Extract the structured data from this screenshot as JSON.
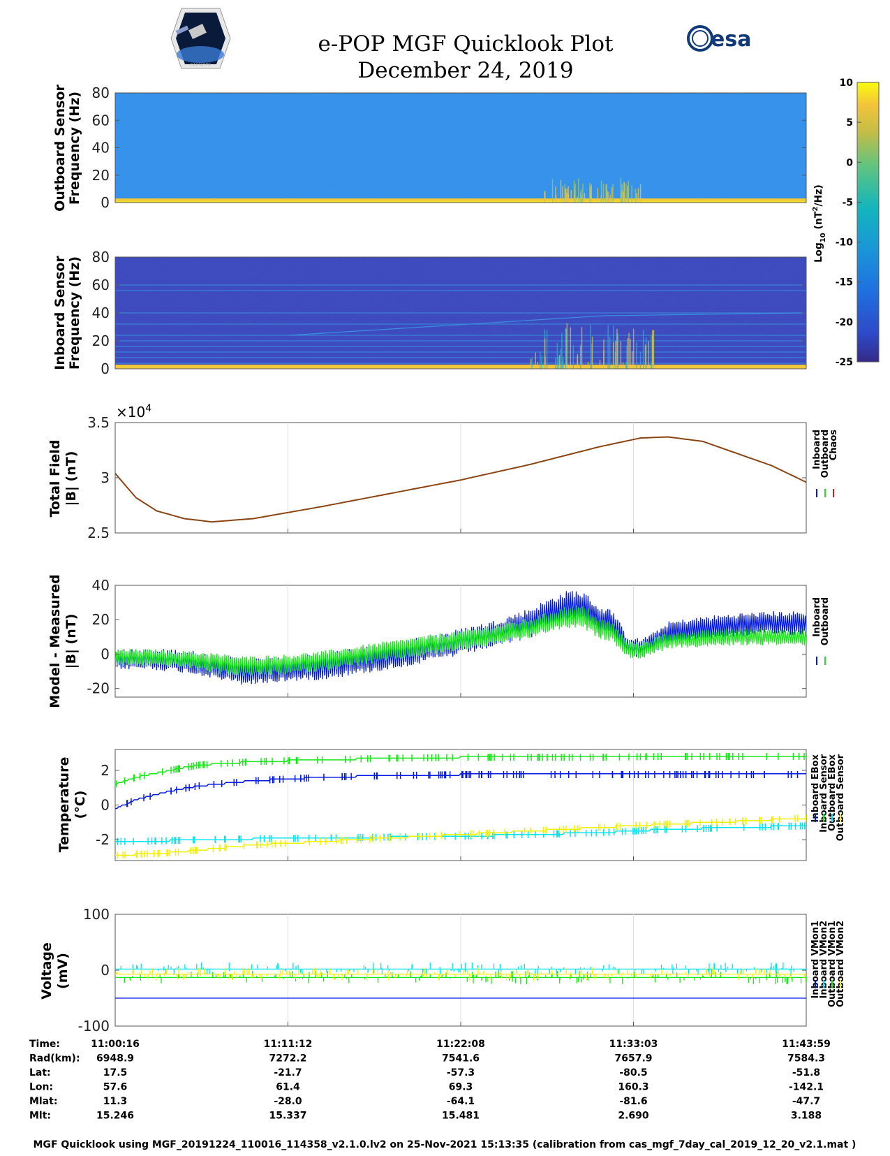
{
  "header": {
    "title": "e-POP MGF Quicklook Plot",
    "date": "December 24, 2019",
    "left_logo_label": "CASSIOPE",
    "right_logo_label": "esa"
  },
  "chart_data": [
    {
      "type": "heatmap",
      "id": "outboard-spectrogram",
      "ylabel": [
        "Outboard Sensor",
        "Frequency (Hz)"
      ],
      "ylim": [
        0,
        80
      ],
      "yticks": [
        0,
        20,
        40,
        60,
        80
      ],
      "description_values": {
        "background_log10": -13,
        "low_band_log10": -1,
        "burst_intervals_fraction": [
          0.62,
          0.76
        ]
      }
    },
    {
      "type": "heatmap",
      "id": "inboard-spectrogram",
      "ylabel": [
        "Inboard Sensor",
        "Frequency (Hz)"
      ],
      "ylim": [
        0,
        80
      ],
      "yticks": [
        0,
        20,
        40,
        60,
        80
      ],
      "description_values": {
        "background_log10": -22,
        "line_freqs_hz": [
          4,
          8,
          12,
          16,
          20,
          24,
          32,
          40,
          56,
          60
        ]
      }
    },
    {
      "type": "colorbar",
      "id": "spectrogram-colorbar",
      "label": "Log10 (nT²/Hz)",
      "label_main": "Log",
      "label_sub": "10",
      "label_rest": " (nT",
      "label_sup": "2",
      "label_end": "/Hz)",
      "range": [
        -25,
        10
      ],
      "ticks": [
        "10",
        "5",
        "0",
        "-5",
        "-10",
        "-15",
        "-20",
        "-25"
      ],
      "tick_values": [
        10,
        5,
        0,
        -5,
        -10,
        -15,
        -20,
        -25
      ]
    },
    {
      "type": "line",
      "id": "total-field",
      "ylabel": [
        "Total Field",
        "|B| (nT)"
      ],
      "yscale_label": "×10",
      "yscale_exp": "4",
      "ylim": [
        2.5,
        3.5
      ],
      "yticks": [
        "2.5",
        "3",
        "3.5"
      ],
      "ytick_values": [
        2.5,
        3.0,
        3.5
      ],
      "x_fraction": [
        0,
        0.03,
        0.06,
        0.1,
        0.14,
        0.2,
        0.3,
        0.4,
        0.5,
        0.6,
        0.65,
        0.7,
        0.76,
        0.8,
        0.85,
        0.9,
        0.95,
        1.0
      ],
      "y": [
        3.04,
        2.82,
        2.7,
        2.63,
        2.6,
        2.63,
        2.74,
        2.86,
        2.98,
        3.12,
        3.2,
        3.28,
        3.36,
        3.37,
        3.33,
        3.22,
        3.11,
        2.96
      ],
      "legend": [
        "Inboard",
        "Outboard",
        "Chaos"
      ],
      "legend_colors": [
        "#0018e6",
        "#18e818",
        "#e61818"
      ],
      "line_color": "#8b4513"
    },
    {
      "type": "line",
      "id": "model-minus-measured",
      "ylabel": [
        "Model - Measured",
        "|B| (nT)"
      ],
      "ylim": [
        -25,
        40
      ],
      "yticks": [
        "-20",
        "0",
        "20",
        "40"
      ],
      "ytick_values": [
        -20,
        0,
        20,
        40
      ],
      "x_fraction": [
        0,
        0.05,
        0.1,
        0.14,
        0.18,
        0.2,
        0.25,
        0.3,
        0.35,
        0.4,
        0.45,
        0.5,
        0.55,
        0.6,
        0.63,
        0.66,
        0.68,
        0.7,
        0.72,
        0.74,
        0.76,
        0.78,
        0.8,
        0.85,
        0.9,
        0.95,
        1.0
      ],
      "inboard_center": [
        -3,
        -3,
        -4,
        -7,
        -10,
        -10,
        -9,
        -7,
        -4,
        -1,
        3,
        7,
        12,
        18,
        24,
        28,
        27,
        20,
        18,
        5,
        3,
        7,
        12,
        15,
        17,
        18,
        18
      ],
      "inboard_halfwidth": [
        6,
        6,
        7,
        7,
        8,
        8,
        7,
        8,
        8,
        8,
        8,
        8,
        8,
        9,
        9,
        10,
        9,
        8,
        8,
        6,
        6,
        6,
        7,
        7,
        7,
        7,
        7
      ],
      "outboard_center": [
        -2,
        -2,
        -3,
        -5,
        -7,
        -7,
        -6,
        -4,
        -1,
        2,
        5,
        8,
        11,
        15,
        19,
        22,
        21,
        15,
        13,
        3,
        2,
        5,
        8,
        9,
        10,
        10,
        10
      ],
      "outboard_halfwidth": [
        5,
        5,
        5,
        6,
        6,
        6,
        6,
        6,
        6,
        6,
        6,
        6,
        6,
        6,
        6,
        7,
        7,
        6,
        6,
        5,
        5,
        5,
        5,
        5,
        5,
        5,
        5
      ],
      "legend": [
        "Inboard",
        "Outboard"
      ],
      "legend_colors": [
        "#0018e6",
        "#18e818"
      ]
    },
    {
      "type": "line",
      "id": "temperature",
      "ylabel": [
        "Temperature",
        "(°C)"
      ],
      "ylim": [
        -3.2,
        3.2
      ],
      "yticks": [
        "-2",
        "0",
        "2"
      ],
      "ytick_values": [
        -2,
        0,
        2
      ],
      "x_fraction": [
        0,
        0.03,
        0.08,
        0.12,
        0.2,
        0.3,
        0.4,
        0.5,
        0.6,
        0.7,
        0.8,
        0.9,
        1.0
      ],
      "series": [
        {
          "name": "Inboard EBox",
          "color": "#0018e6",
          "values": [
            -0.2,
            0.3,
            0.8,
            1.1,
            1.4,
            1.6,
            1.7,
            1.75,
            1.75,
            1.75,
            1.75,
            1.75,
            1.75
          ]
        },
        {
          "name": "Inboard Sensor",
          "color": "#18e818",
          "values": [
            1.2,
            1.6,
            2.0,
            2.3,
            2.5,
            2.6,
            2.7,
            2.75,
            2.75,
            2.75,
            2.8,
            2.8,
            2.8
          ]
        },
        {
          "name": "Outboard EBox",
          "color": "#00e6f0",
          "values": [
            -2.1,
            -2.1,
            -2.05,
            -2.0,
            -1.95,
            -1.9,
            -1.85,
            -1.8,
            -1.7,
            -1.6,
            -1.4,
            -1.3,
            -1.2
          ]
        },
        {
          "name": "Outboard Sensor",
          "color": "#f0f000",
          "values": [
            -2.9,
            -2.85,
            -2.75,
            -2.6,
            -2.3,
            -2.1,
            -1.9,
            -1.7,
            -1.5,
            -1.3,
            -1.1,
            -0.95,
            -0.75
          ]
        }
      ],
      "legend": [
        "Inboard EBox",
        "Inboard Sensor",
        "Outboard EBox",
        "Outboard Sensor"
      ],
      "legend_colors": [
        "#0018e6",
        "#18e818",
        "#00e6f0",
        "#f0f000"
      ]
    },
    {
      "type": "line",
      "id": "voltage",
      "ylabel": [
        "Voltage",
        "(mV)"
      ],
      "ylim": [
        -100,
        100
      ],
      "yticks": [
        "-100",
        "0",
        "100"
      ],
      "ytick_values": [
        -100,
        0,
        100
      ],
      "series": [
        {
          "name": "Inboard VMon1",
          "color": "#0018e6",
          "value": -50
        },
        {
          "name": "Inboard VMon2",
          "color": "#00e6f0",
          "value": 2
        },
        {
          "name": "Outboard VMon1",
          "color": "#18e818",
          "value": -13
        },
        {
          "name": "Outboard VMon2",
          "color": "#f0f000",
          "value": -7
        }
      ],
      "legend": [
        "Inboard VMon1",
        "Inboard VMon2",
        "Outboard VMon1",
        "Outboard VMon2"
      ],
      "legend_colors": [
        "#0018e6",
        "#00e6f0",
        "#18e818",
        "#f0f000"
      ]
    }
  ],
  "orbit_table": {
    "row_labels": [
      "Time:",
      "Rad(km):",
      "Lat:",
      "Lon:",
      "Mlat:",
      "Mlt:"
    ],
    "columns": [
      [
        "11:00:16",
        "6948.9",
        "17.5",
        "57.6",
        "11.3",
        "15.246"
      ],
      [
        "11:11:12",
        "7272.2",
        "-21.7",
        "61.4",
        "-28.0",
        "15.337"
      ],
      [
        "11:22:08",
        "7541.6",
        "-57.3",
        "69.3",
        "-64.1",
        "15.481"
      ],
      [
        "11:33:03",
        "7657.9",
        "-80.5",
        "160.3",
        "-81.6",
        "2.690"
      ],
      [
        "11:43:59",
        "7584.3",
        "-51.8",
        "-142.1",
        "-47.7",
        "3.188"
      ]
    ]
  },
  "footer": "MGF Quicklook using MGF_20191224_110016_114358_v2.1.0.lv2 on 25-Nov-2021 15:13:35 (calibration from cas_mgf_7day_cal_2019_12_20_v2.1.mat )"
}
